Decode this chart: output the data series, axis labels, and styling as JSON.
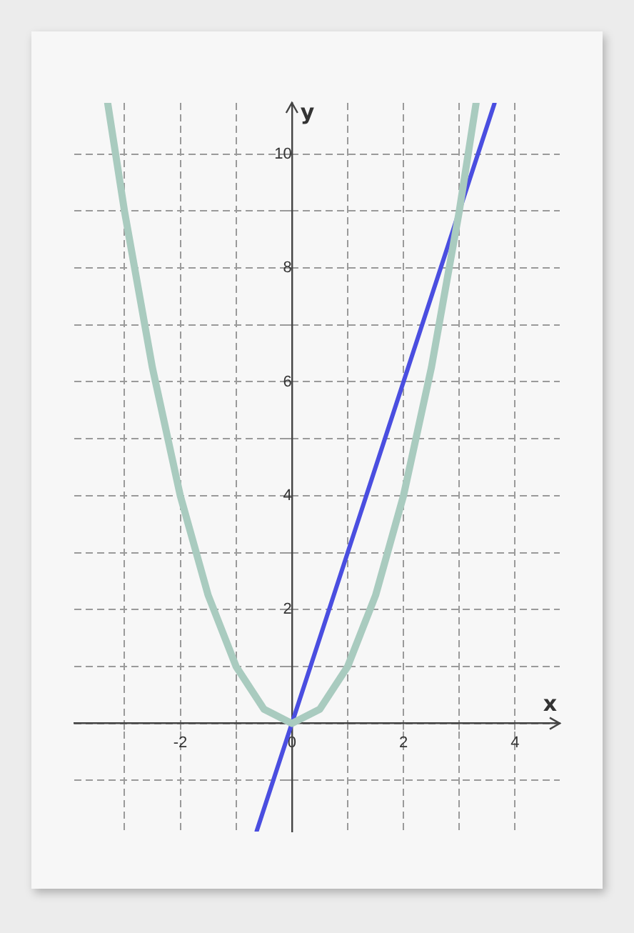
{
  "chart_data": {
    "type": "line",
    "xlabel": "x",
    "ylabel": "y",
    "xlim": [
      -3.9,
      4.8
    ],
    "ylim": [
      -1.9,
      10.9
    ],
    "xticks": [
      {
        "value": -3,
        "label": null
      },
      -2,
      {
        "value": -1,
        "label": null
      },
      0,
      {
        "value": 1,
        "label": null
      },
      2,
      {
        "value": 3,
        "label": null
      },
      4
    ],
    "yticks": [
      {
        "value": -1,
        "label": null
      },
      {
        "value": 0,
        "label": null
      },
      {
        "value": 1,
        "label": null
      },
      2,
      {
        "value": 3,
        "label": null
      },
      4,
      {
        "value": 5,
        "label": null
      },
      6,
      {
        "value": 7,
        "label": null
      },
      8,
      {
        "value": 9,
        "label": null
      },
      10
    ],
    "series": [
      {
        "color": "#a9cbbf",
        "x": [
          -3.3,
          -3,
          -2.5,
          -2,
          -1.5,
          -1,
          -0.5,
          0,
          0.5,
          1,
          1.5,
          2,
          2.5,
          3,
          3.3
        ],
        "values": [
          10.89,
          9,
          6.25,
          4,
          2.25,
          1,
          0.25,
          0,
          0.25,
          1,
          2.25,
          4,
          6.25,
          9,
          10.89
        ]
      },
      {
        "color": "#4a4ee0",
        "x": [
          -0.63,
          3.63
        ],
        "values": [
          -1.89,
          10.89
        ]
      }
    ],
    "grid": true,
    "legend": false,
    "marker": "none",
    "line_style": "solid"
  }
}
